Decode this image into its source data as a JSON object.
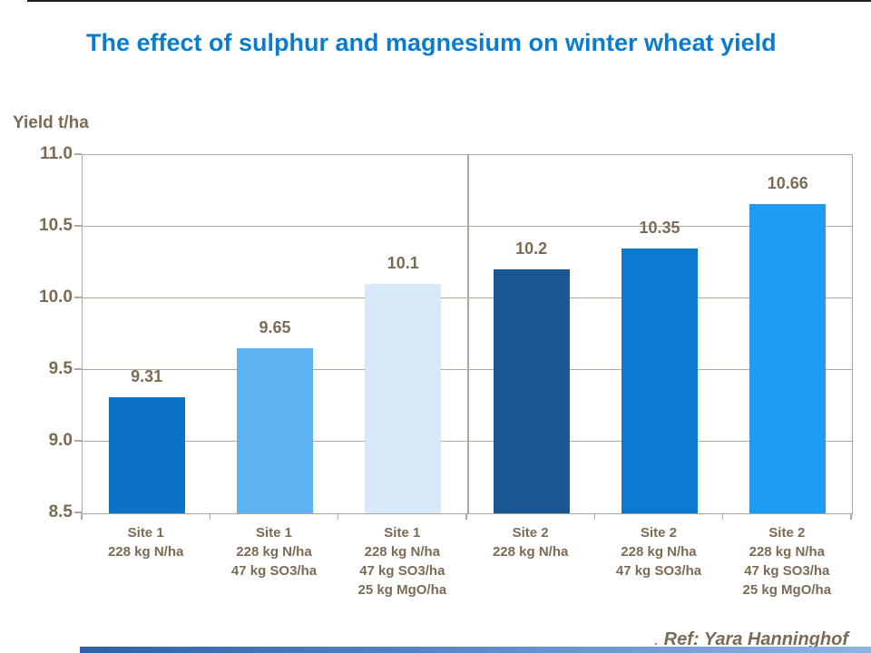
{
  "slide": {
    "title": "The effect of sulphur and magnesium on winter wheat yield",
    "ref_prefix": ".",
    "ref_text": "Ref: Yara Hanninghof"
  },
  "colors": {
    "title_text": "#0b7ccd",
    "axis_text": "#7b6a54",
    "grid_and_axis": "#b2a79b",
    "top_line": "#1f1f1f",
    "footer_gradient_left": "#2d61a8",
    "footer_gradient_right": "#8fb4e3"
  },
  "chart_data": {
    "type": "bar",
    "title": "The effect of sulphur and magnesium on winter wheat yield",
    "xlabel": "",
    "ylabel": "Yield t/ha",
    "ylim": [
      8.5,
      11.0
    ],
    "ytick_values": [
      11.0,
      10.5,
      10.0,
      9.5,
      9.0,
      8.5
    ],
    "ytick_labels": [
      "11.0",
      "10.5",
      "10.0",
      "9.5",
      "9.0",
      "8.5"
    ],
    "grid": true,
    "legend_position": "none",
    "annotation": "Ref: Yara Hanninghof",
    "group_divider_after_category": 3,
    "categories": [
      {
        "label_lines": [
          "Site 1",
          "228 kg N/ha"
        ],
        "value": 9.31,
        "value_label": "9.31",
        "color": "#0b72c6"
      },
      {
        "label_lines": [
          "Site 1",
          "228 kg N/ha",
          "47 kg SO3/ha"
        ],
        "value": 9.65,
        "value_label": "9.65",
        "color": "#5eb3f2"
      },
      {
        "label_lines": [
          "Site 1",
          "228 kg N/ha",
          "47 kg SO3/ha",
          "25 kg MgO/ha"
        ],
        "value": 10.1,
        "value_label": "10.1",
        "color": "#d8e9fa"
      },
      {
        "label_lines": [
          "Site 2",
          "228 kg N/ha"
        ],
        "value": 10.2,
        "value_label": "10.2",
        "color": "#1a5795"
      },
      {
        "label_lines": [
          "Site 2",
          "228 kg N/ha",
          "47 kg SO3/ha"
        ],
        "value": 10.35,
        "value_label": "10.35",
        "color": "#0c7ad0"
      },
      {
        "label_lines": [
          "Site 2",
          "228 kg N/ha",
          "47 kg SO3/ha",
          "25 kg MgO/ha"
        ],
        "value": 10.66,
        "value_label": "10.66",
        "color": "#1e9bf2"
      }
    ]
  }
}
